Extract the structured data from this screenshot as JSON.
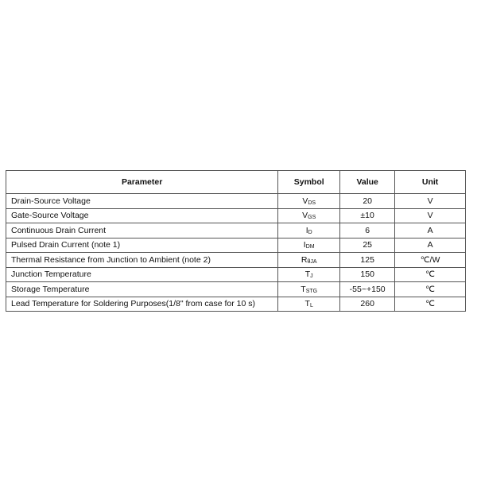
{
  "table": {
    "headers": [
      "Parameter",
      "Symbol",
      "Value",
      "Unit"
    ],
    "rows": [
      {
        "parameter": "Drain-Source Voltage",
        "symbol": "V",
        "symbol_sub": "DS",
        "value": "20",
        "unit": "V"
      },
      {
        "parameter": "Gate-Source Voltage",
        "symbol": "V",
        "symbol_sub": "GS",
        "value": "±10",
        "unit": "V"
      },
      {
        "parameter": "Continuous Drain Current",
        "symbol": "I",
        "symbol_sub": "D",
        "value": "6",
        "unit": "A"
      },
      {
        "parameter": "Pulsed Drain Current (note 1)",
        "symbol": "I",
        "symbol_sub": "DM",
        "value": "25",
        "unit": "A"
      },
      {
        "parameter": "Thermal Resistance from Junction to Ambient (note 2)",
        "symbol": "R",
        "symbol_sub": "θJA",
        "value": "125",
        "unit": "℃/W"
      },
      {
        "parameter": "Junction Temperature",
        "symbol": "T",
        "symbol_sub": "J",
        "value": "150",
        "unit": "℃"
      },
      {
        "parameter": "Storage Temperature",
        "symbol": "T",
        "symbol_sub": "STG",
        "value": "-55~+150",
        "unit": "℃"
      },
      {
        "parameter": "Lead Temperature for Soldering Purposes(1/8\" from case for 10 s)",
        "symbol": "T",
        "symbol_sub": "L",
        "value": "260",
        "unit": "℃"
      }
    ]
  }
}
